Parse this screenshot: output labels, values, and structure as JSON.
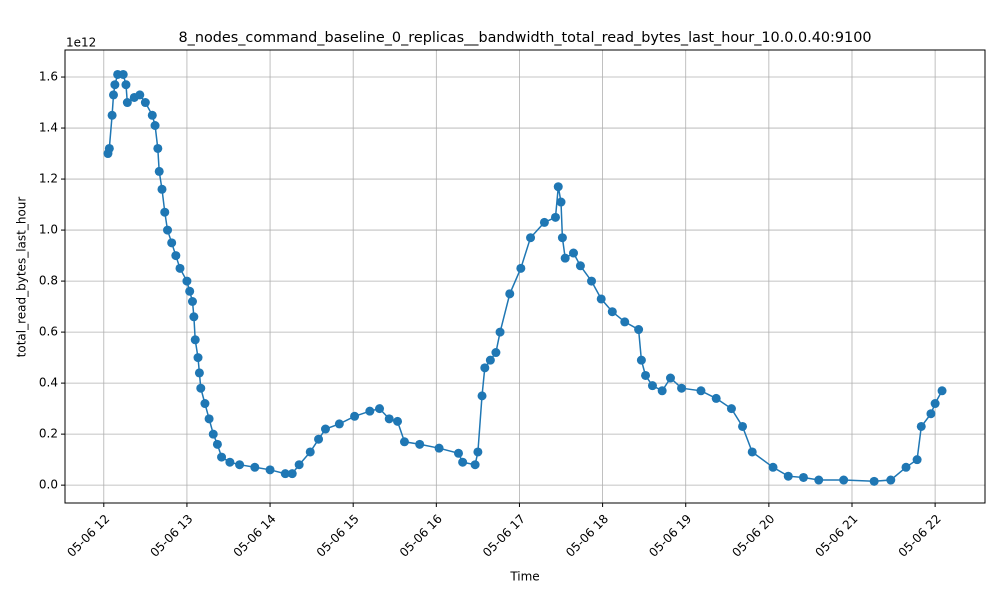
{
  "chart_data": {
    "type": "line",
    "title": "8_nodes_command_baseline_0_replicas__bandwidth_total_read_bytes_last_hour_10.0.0.40:9100",
    "xlabel": "Time",
    "ylabel": "total_read_bytes_last_hour",
    "y_offset_label": "1e12",
    "color": "#1f77b4",
    "grid": true,
    "x": [
      "05-06 12:03",
      "05-06 12:04",
      "05-06 12:06",
      "05-06 12:07",
      "05-06 12:08",
      "05-06 12:10",
      "05-06 12:14",
      "05-06 12:16",
      "05-06 12:17",
      "05-06 12:22",
      "05-06 12:26",
      "05-06 12:30",
      "05-06 12:35",
      "05-06 12:37",
      "05-06 12:39",
      "05-06 12:40",
      "05-06 12:42",
      "05-06 12:44",
      "05-06 12:46",
      "05-06 12:49",
      "05-06 12:52",
      "05-06 12:55",
      "05-06 13:00",
      "05-06 13:02",
      "05-06 13:04",
      "05-06 13:05",
      "05-06 13:06",
      "05-06 13:08",
      "05-06 13:09",
      "05-06 13:10",
      "05-06 13:13",
      "05-06 13:16",
      "05-06 13:19",
      "05-06 13:22",
      "05-06 13:25",
      "05-06 13:31",
      "05-06 13:38",
      "05-06 13:49",
      "05-06 14:00",
      "05-06 14:11",
      "05-06 14:16",
      "05-06 14:21",
      "05-06 14:29",
      "05-06 14:35",
      "05-06 14:40",
      "05-06 14:50",
      "05-06 15:01",
      "05-06 15:12",
      "05-06 15:19",
      "05-06 15:26",
      "05-06 15:32",
      "05-06 15:37",
      "05-06 15:48",
      "05-06 16:02",
      "05-06 16:16",
      "05-06 16:19",
      "05-06 16:28",
      "05-06 16:30",
      "05-06 16:33",
      "05-06 16:35",
      "05-06 16:39",
      "05-06 16:43",
      "05-06 16:46",
      "05-06 16:53",
      "05-06 17:01",
      "05-06 17:08",
      "05-06 17:18",
      "05-06 17:26",
      "05-06 17:28",
      "05-06 17:30",
      "05-06 17:31",
      "05-06 17:33",
      "05-06 17:39",
      "05-06 17:44",
      "05-06 17:52",
      "05-06 17:59",
      "05-06 18:07",
      "05-06 18:16",
      "05-06 18:26",
      "05-06 18:28",
      "05-06 18:31",
      "05-06 18:36",
      "05-06 18:43",
      "05-06 18:49",
      "05-06 18:57",
      "05-06 19:11",
      "05-06 19:22",
      "05-06 19:33",
      "05-06 19:41",
      "05-06 19:48",
      "05-06 20:03",
      "05-06 20:14",
      "05-06 20:25",
      "05-06 20:36",
      "05-06 20:54",
      "05-06 21:16",
      "05-06 21:28",
      "05-06 21:39",
      "05-06 21:47",
      "05-06 21:50",
      "05-06 21:57",
      "05-06 22:00",
      "05-06 22:05"
    ],
    "values": [
      1.3,
      1.32,
      1.45,
      1.53,
      1.57,
      1.61,
      1.61,
      1.57,
      1.5,
      1.52,
      1.53,
      1.5,
      1.45,
      1.41,
      1.32,
      1.23,
      1.16,
      1.07,
      1.0,
      0.95,
      0.9,
      0.85,
      0.8,
      0.76,
      0.72,
      0.66,
      0.57,
      0.5,
      0.44,
      0.38,
      0.32,
      0.26,
      0.2,
      0.16,
      0.11,
      0.09,
      0.08,
      0.07,
      0.06,
      0.045,
      0.045,
      0.08,
      0.13,
      0.18,
      0.22,
      0.24,
      0.27,
      0.29,
      0.3,
      0.26,
      0.25,
      0.17,
      0.16,
      0.145,
      0.125,
      0.09,
      0.08,
      0.13,
      0.35,
      0.46,
      0.49,
      0.52,
      0.6,
      0.75,
      0.85,
      0.97,
      1.03,
      1.05,
      1.17,
      1.11,
      0.97,
      0.89,
      0.91,
      0.86,
      0.8,
      0.73,
      0.68,
      0.64,
      0.61,
      0.49,
      0.43,
      0.39,
      0.37,
      0.42,
      0.38,
      0.37,
      0.34,
      0.3,
      0.23,
      0.13,
      0.07,
      0.035,
      0.03,
      0.02,
      0.02,
      0.015,
      0.02,
      0.07,
      0.1,
      0.23,
      0.28,
      0.32,
      0.37
    ],
    "xlim": [
      "05-06 11:32",
      "05-06 22:36"
    ],
    "xticks": [
      {
        "value": "05-06 12:00",
        "label": "05-06 12"
      },
      {
        "value": "05-06 13:00",
        "label": "05-06 13"
      },
      {
        "value": "05-06 14:00",
        "label": "05-06 14"
      },
      {
        "value": "05-06 15:00",
        "label": "05-06 15"
      },
      {
        "value": "05-06 16:00",
        "label": "05-06 16"
      },
      {
        "value": "05-06 17:00",
        "label": "05-06 17"
      },
      {
        "value": "05-06 18:00",
        "label": "05-06 18"
      },
      {
        "value": "05-06 19:00",
        "label": "05-06 19"
      },
      {
        "value": "05-06 20:00",
        "label": "05-06 20"
      },
      {
        "value": "05-06 21:00",
        "label": "05-06 21"
      },
      {
        "value": "05-06 22:00",
        "label": "05-06 22"
      }
    ],
    "ylim": [
      -0.07,
      1.706
    ],
    "yticks": [
      {
        "value": 0,
        "label": "0.0"
      },
      0.2,
      0.4,
      0.6,
      0.8,
      {
        "value": 1,
        "label": "1.0"
      },
      1.2,
      1.4,
      1.6
    ]
  }
}
